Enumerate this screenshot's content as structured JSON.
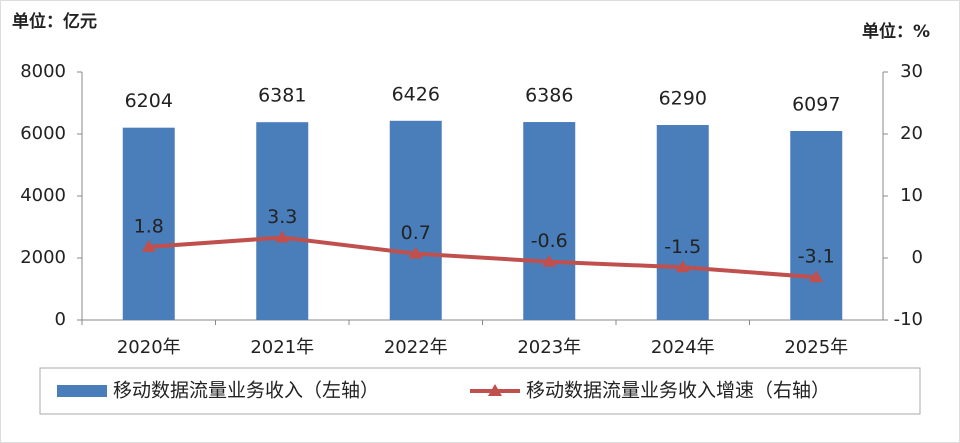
{
  "chart_data": {
    "type": "bar",
    "y_unit_label": "单位：亿元",
    "y2_unit_label": "单位：%",
    "categories": [
      "2020年",
      "2021年",
      "2022年",
      "2023年",
      "2024年",
      "2025年"
    ],
    "series": [
      {
        "name": "移动数据流量业务收入（左轴）",
        "type": "bar",
        "color": "#4a7ebb",
        "values": [
          6204,
          6381,
          6426,
          6386,
          6290,
          6097
        ]
      },
      {
        "name": "移动数据流量业务收入增速（右轴）",
        "type": "line",
        "axis": "y2",
        "color": "#c0504d",
        "values": [
          1.8,
          3.3,
          0.7,
          -0.6,
          -1.5,
          -3.1
        ]
      }
    ],
    "ylim": [
      0,
      8000
    ],
    "yticks": [
      0,
      2000,
      4000,
      6000,
      8000
    ],
    "y2lim": [
      -10,
      30
    ],
    "y2ticks": [
      -10,
      0,
      10,
      20,
      30
    ],
    "grid": false
  }
}
